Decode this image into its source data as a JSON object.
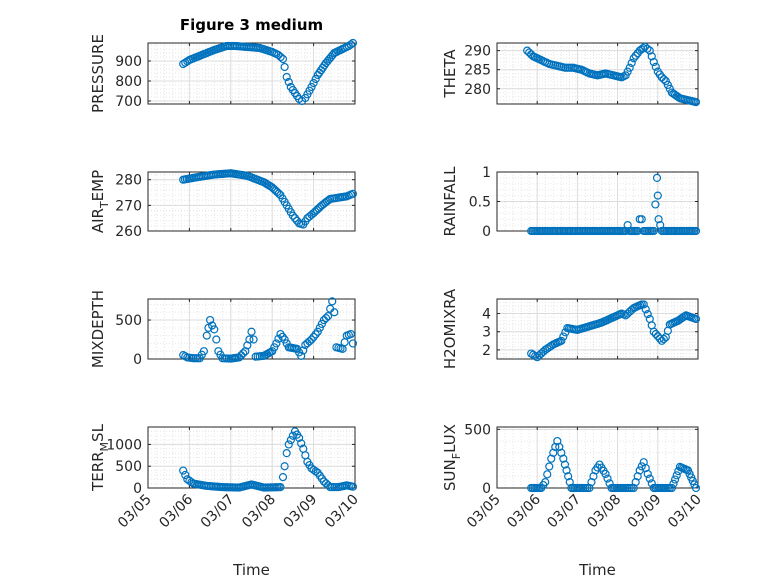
{
  "chart_data": [
    {
      "type": "scatter",
      "title": "Figure 3 medium",
      "ylabel": "PRESSURE",
      "xlabel": "",
      "ylim": [
        685,
        990
      ],
      "yticks": [
        700,
        800,
        900
      ],
      "x": [
        0.85,
        1.0,
        1.3,
        1.6,
        1.9,
        2.1,
        2.4,
        2.7,
        3.0,
        3.15,
        3.26,
        3.3,
        3.35,
        3.45,
        3.55,
        3.65,
        3.72,
        3.8,
        3.95,
        4.1,
        4.3,
        4.5,
        4.7,
        4.85,
        4.95
      ],
      "y": [
        885,
        905,
        930,
        955,
        975,
        975,
        970,
        965,
        945,
        930,
        910,
        870,
        820,
        770,
        740,
        710,
        700,
        715,
        770,
        830,
        890,
        940,
        960,
        975,
        990
      ]
    },
    {
      "type": "scatter",
      "title": "",
      "ylabel": "THETA",
      "xlabel": "",
      "ylim": [
        276,
        292
      ],
      "yticks": [
        280,
        285,
        290
      ],
      "x": [
        0.75,
        0.9,
        1.1,
        1.3,
        1.5,
        1.7,
        1.9,
        2.1,
        2.3,
        2.5,
        2.7,
        2.9,
        3.1,
        3.2,
        3.3,
        3.4,
        3.55,
        3.68,
        3.8,
        3.9,
        4.0,
        4.1,
        4.2,
        4.35,
        4.55,
        4.75,
        4.95
      ],
      "y": [
        290,
        288.5,
        287.5,
        286.5,
        286,
        285.5,
        285.5,
        285,
        284,
        283.5,
        284,
        283.5,
        283,
        283.5,
        285.5,
        288,
        290,
        291,
        290,
        287,
        284.5,
        283,
        282,
        279,
        277.5,
        277,
        276.5
      ]
    },
    {
      "type": "scatter",
      "title": "",
      "ylabel": "AIR_TEMP",
      "xlabel": "",
      "ylim": [
        260,
        283
      ],
      "yticks": [
        260,
        270,
        280
      ],
      "x": [
        0.85,
        1.2,
        1.6,
        2.0,
        2.4,
        2.8,
        3.0,
        3.2,
        3.35,
        3.5,
        3.65,
        3.75,
        3.85,
        4.0,
        4.2,
        4.4,
        4.6,
        4.8,
        4.95
      ],
      "y": [
        280,
        281,
        282,
        282.5,
        281.5,
        279,
        277,
        274,
        270,
        266,
        263,
        262.5,
        265,
        267,
        270,
        272.5,
        273,
        273.5,
        274.5
      ]
    },
    {
      "type": "scatter",
      "title": "",
      "ylabel": "RAINFALL",
      "xlabel": "",
      "ylim": [
        0,
        1
      ],
      "yticks": [
        0,
        0.5,
        1
      ],
      "x": [
        0.85,
        1.5,
        2.0,
        2.5,
        3.0,
        3.2,
        3.25,
        3.3,
        3.5,
        3.55,
        3.6,
        3.65,
        3.9,
        3.98,
        4.0,
        4.02,
        4.1,
        4.5,
        4.95
      ],
      "y": [
        0,
        0,
        0,
        0,
        0,
        0,
        0.1,
        0,
        0,
        0.2,
        0.2,
        0,
        0,
        0.9,
        0.6,
        0.2,
        0,
        0,
        0
      ]
    },
    {
      "type": "scatter",
      "title": "",
      "ylabel": "MIXDEPTH",
      "xlabel": "",
      "ylim": [
        0,
        770
      ],
      "yticks": [
        0,
        500
      ],
      "x": [
        0.85,
        0.95,
        1.1,
        1.25,
        1.35,
        1.42,
        1.5,
        1.55,
        1.6,
        1.65,
        1.7,
        1.8,
        2.0,
        2.2,
        2.35,
        2.45,
        2.5,
        2.55,
        2.6,
        2.8,
        3.0,
        3.1,
        3.2,
        3.3,
        3.4,
        3.6,
        3.7,
        3.8,
        3.95,
        4.1,
        4.25,
        4.35,
        4.45,
        4.5,
        4.55,
        4.7,
        4.8,
        4.9,
        4.95
      ],
      "y": [
        50,
        20,
        10,
        10,
        100,
        300,
        500,
        430,
        380,
        250,
        100,
        10,
        5,
        20,
        100,
        250,
        350,
        250,
        30,
        40,
        100,
        200,
        320,
        250,
        150,
        130,
        40,
        180,
        250,
        350,
        500,
        550,
        740,
        600,
        150,
        130,
        300,
        320,
        200
      ]
    },
    {
      "type": "scatter",
      "title": "",
      "ylabel": "H2OMIXRA",
      "xlabel": "",
      "ylim": [
        1.5,
        4.8
      ],
      "yticks": [
        2,
        3,
        4
      ],
      "x": [
        0.85,
        1.0,
        1.2,
        1.4,
        1.6,
        1.75,
        2.0,
        2.3,
        2.6,
        2.9,
        3.1,
        3.2,
        3.4,
        3.6,
        3.65,
        3.8,
        3.9,
        4.1,
        4.2,
        4.3,
        4.5,
        4.7,
        4.95
      ],
      "y": [
        1.8,
        1.6,
        2.0,
        2.3,
        2.5,
        3.2,
        3.1,
        3.3,
        3.5,
        3.8,
        4.0,
        3.9,
        4.3,
        4.5,
        4.5,
        3.7,
        3.0,
        2.5,
        2.7,
        3.4,
        3.6,
        3.9,
        3.7
      ]
    },
    {
      "type": "scatter",
      "title": "",
      "ylabel": "TERR_MSL",
      "xlabel": "Time",
      "ylim": [
        0,
        1400
      ],
      "yticks": [
        0,
        500,
        1000
      ],
      "x": [
        0.85,
        0.95,
        1.1,
        1.4,
        1.8,
        2.2,
        2.5,
        2.8,
        3.2,
        3.26,
        3.3,
        3.35,
        3.4,
        3.5,
        3.55,
        3.65,
        3.75,
        3.85,
        3.95,
        4.1,
        4.25,
        4.4,
        4.6,
        4.8,
        4.95
      ],
      "y": [
        400,
        200,
        100,
        50,
        20,
        10,
        80,
        10,
        20,
        250,
        500,
        800,
        1000,
        1200,
        1300,
        1150,
        900,
        600,
        450,
        350,
        150,
        20,
        20,
        60,
        30
      ]
    },
    {
      "type": "scatter",
      "title": "",
      "ylabel": "SUN_FLUX",
      "xlabel": "Time",
      "ylim": [
        0,
        520
      ],
      "yticks": [
        0,
        500
      ],
      "x": [
        0.85,
        1.1,
        1.2,
        1.35,
        1.5,
        1.65,
        1.85,
        2.1,
        2.3,
        2.45,
        2.55,
        2.7,
        2.85,
        3.2,
        3.4,
        3.55,
        3.65,
        3.75,
        3.9,
        4.2,
        4.35,
        4.55,
        4.75,
        4.95
      ],
      "y": [
        0,
        0,
        50,
        250,
        400,
        250,
        0,
        0,
        0,
        150,
        200,
        120,
        0,
        0,
        0,
        150,
        220,
        120,
        0,
        0,
        0,
        180,
        150,
        0
      ]
    }
  ],
  "xticks": [
    "03/05",
    "03/06",
    "03/07",
    "03/08",
    "03/09",
    "03/10"
  ],
  "colors": {
    "marker": "#0072BD",
    "axis": "#262626",
    "grid": "#dcdcdc"
  }
}
